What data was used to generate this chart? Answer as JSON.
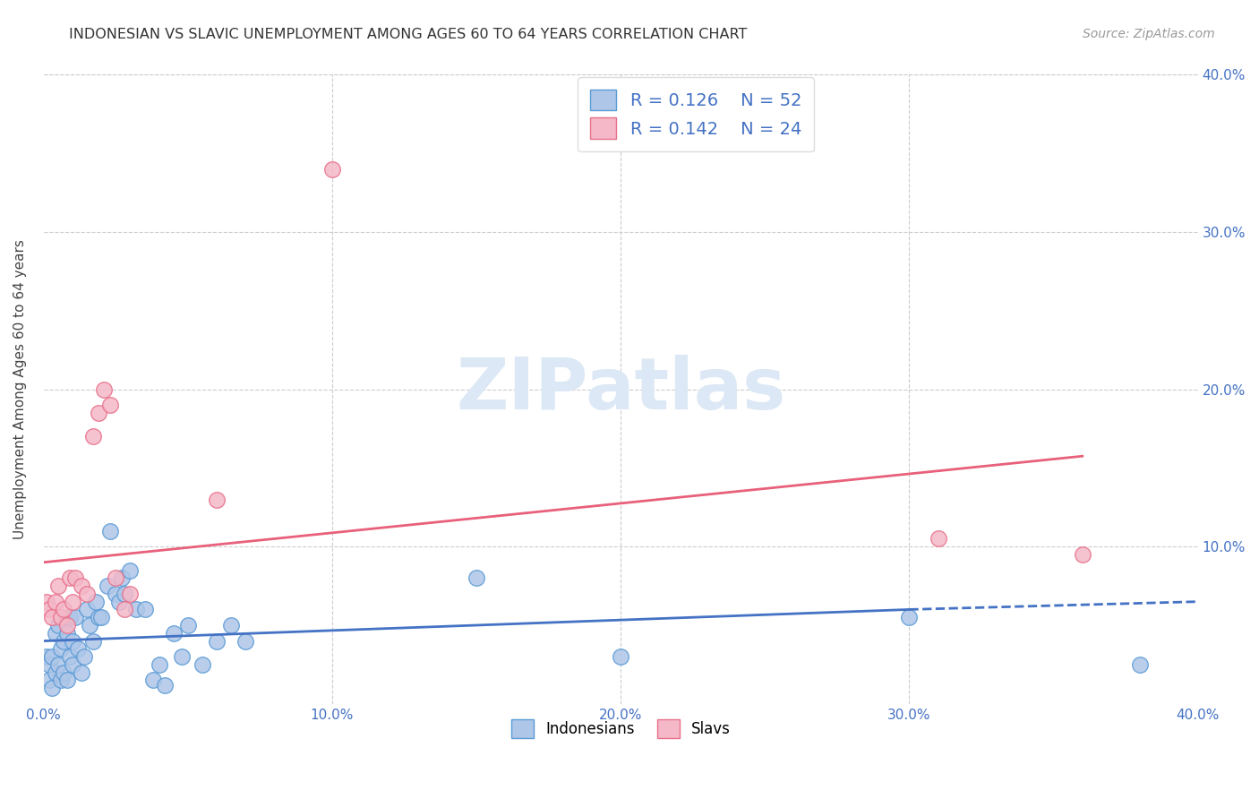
{
  "title": "INDONESIAN VS SLAVIC UNEMPLOYMENT AMONG AGES 60 TO 64 YEARS CORRELATION CHART",
  "source": "Source: ZipAtlas.com",
  "ylabel": "Unemployment Among Ages 60 to 64 years",
  "xlim": [
    0.0,
    0.4
  ],
  "ylim": [
    0.0,
    0.4
  ],
  "background_color": "#ffffff",
  "grid_color": "#cccccc",
  "indonesian_color": "#aec6e8",
  "indonesian_edge": "#5b9bd5",
  "slav_color": "#f4b8c8",
  "slav_edge": "#e8708a",
  "trend_blue_color": "#4472c4",
  "trend_pink_color": "#e8607a",
  "watermark_color": "#dce8f5",
  "indonesian_x": [
    0.001,
    0.002,
    0.002,
    0.003,
    0.003,
    0.004,
    0.004,
    0.005,
    0.005,
    0.006,
    0.006,
    0.007,
    0.007,
    0.008,
    0.008,
    0.009,
    0.009,
    0.01,
    0.01,
    0.011,
    0.012,
    0.013,
    0.014,
    0.015,
    0.016,
    0.017,
    0.018,
    0.019,
    0.02,
    0.022,
    0.023,
    0.025,
    0.026,
    0.027,
    0.028,
    0.03,
    0.032,
    0.035,
    0.038,
    0.04,
    0.042,
    0.045,
    0.048,
    0.05,
    0.055,
    0.06,
    0.065,
    0.07,
    0.15,
    0.2,
    0.3,
    0.38
  ],
  "indonesian_y": [
    0.03,
    0.025,
    0.015,
    0.03,
    0.01,
    0.02,
    0.045,
    0.025,
    0.05,
    0.035,
    0.015,
    0.04,
    0.02,
    0.045,
    0.015,
    0.03,
    0.055,
    0.025,
    0.04,
    0.055,
    0.035,
    0.02,
    0.03,
    0.06,
    0.05,
    0.04,
    0.065,
    0.055,
    0.055,
    0.075,
    0.11,
    0.07,
    0.065,
    0.08,
    0.07,
    0.085,
    0.06,
    0.06,
    0.015,
    0.025,
    0.012,
    0.045,
    0.03,
    0.05,
    0.025,
    0.04,
    0.05,
    0.04,
    0.08,
    0.03,
    0.055,
    0.025
  ],
  "slav_x": [
    0.001,
    0.002,
    0.003,
    0.004,
    0.005,
    0.006,
    0.007,
    0.008,
    0.009,
    0.01,
    0.011,
    0.013,
    0.015,
    0.017,
    0.019,
    0.021,
    0.023,
    0.025,
    0.028,
    0.03,
    0.06,
    0.1,
    0.31,
    0.36
  ],
  "slav_y": [
    0.065,
    0.06,
    0.055,
    0.065,
    0.075,
    0.055,
    0.06,
    0.05,
    0.08,
    0.065,
    0.08,
    0.075,
    0.07,
    0.17,
    0.185,
    0.2,
    0.19,
    0.08,
    0.06,
    0.07,
    0.13,
    0.34,
    0.105,
    0.095
  ],
  "trend_blue_x0": 0.0,
  "trend_blue_x1": 0.3,
  "trend_blue_y0": 0.04,
  "trend_blue_y1": 0.06,
  "trend_blue_dash_x0": 0.3,
  "trend_blue_dash_x1": 0.4,
  "trend_blue_dash_y0": 0.06,
  "trend_blue_dash_y1": 0.065,
  "trend_pink_x0": 0.0,
  "trend_pink_x1": 0.4,
  "trend_pink_y0": 0.09,
  "trend_pink_y1": 0.165,
  "trend_pink_solid_end": 0.36,
  "legend_r1": "R = 0.126",
  "legend_n1": "N = 52",
  "legend_r2": "R = 0.142",
  "legend_n2": "N = 24",
  "legend_label1": "Indonesians",
  "legend_label2": "Slavs",
  "watermark": "ZIPatlas",
  "figsize": [
    14.06,
    8.92
  ],
  "dpi": 100
}
